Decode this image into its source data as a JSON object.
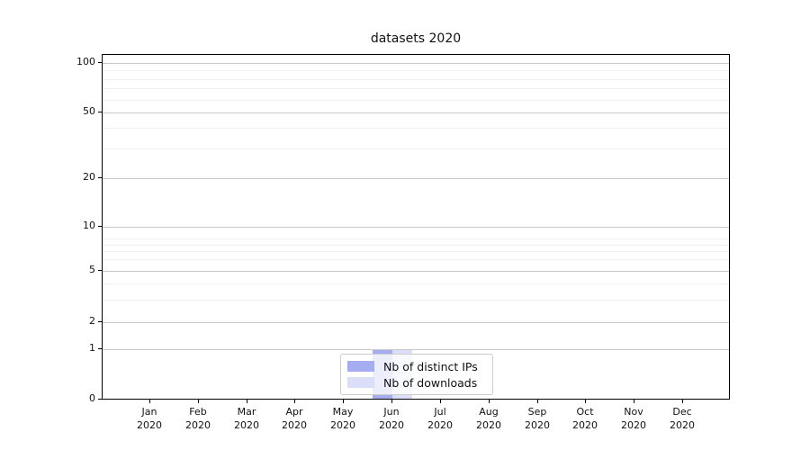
{
  "chart_data": {
    "type": "bar",
    "title": "datasets 2020",
    "categories": [
      "Jan",
      "Feb",
      "Mar",
      "Apr",
      "May",
      "Jun",
      "Jul",
      "Aug",
      "Sep",
      "Oct",
      "Nov",
      "Dec"
    ],
    "category_year": "2020",
    "series": [
      {
        "name": "Nb of distinct IPs",
        "color": "#a6acf0",
        "values": [
          0,
          0,
          0,
          0,
          0,
          1,
          0,
          0,
          0,
          0,
          0,
          0
        ]
      },
      {
        "name": "Nb of downloads",
        "color": "#dbdef8",
        "values": [
          0,
          0,
          0,
          0,
          0,
          1,
          0,
          0,
          0,
          0,
          0,
          0
        ]
      }
    ],
    "xlabel": "",
    "ylabel": "",
    "y_scale": "symlog",
    "ylim": [
      0,
      100
    ],
    "y_ticks": [
      0,
      1,
      2,
      5,
      10,
      20,
      50,
      100
    ],
    "y_minor_gridlines": [
      3,
      4,
      6,
      7,
      8,
      9,
      30,
      40,
      60,
      70,
      80,
      90
    ],
    "grid": "horizontal major+minor",
    "legend": {
      "position": "lower center",
      "items": [
        "Nb of distinct IPs",
        "Nb of downloads"
      ]
    }
  }
}
